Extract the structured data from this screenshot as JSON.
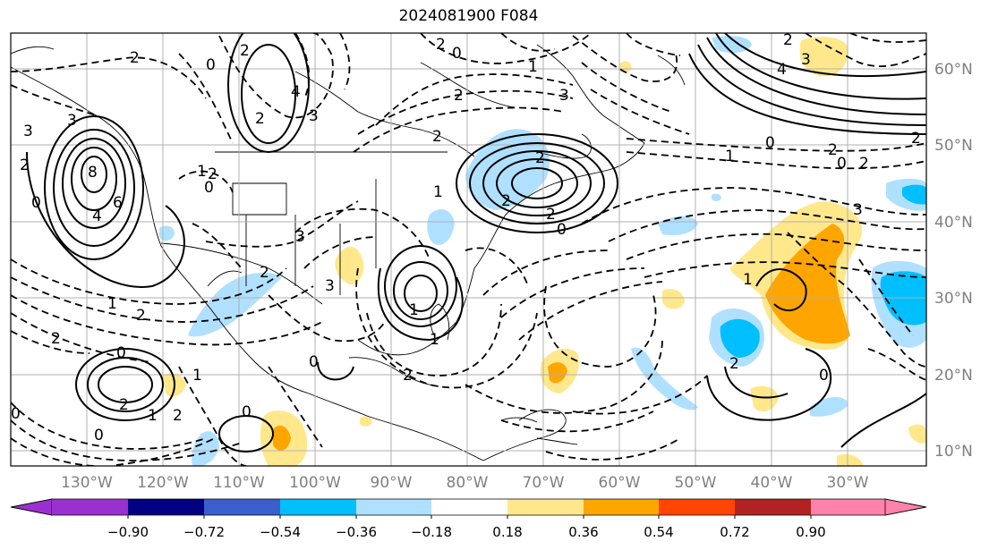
{
  "title": "2024081900 F084",
  "lon_labels": [
    "130°W",
    "120°W",
    "110°W",
    "100°W",
    "90°W",
    "80°W",
    "70°W",
    "60°W",
    "50°W",
    "40°W",
    "30°W"
  ],
  "lat_labels": [
    "60°N",
    "50°N",
    "40°N",
    "30°N",
    "20°N",
    "10°N"
  ],
  "colorbar": {
    "ticks": [
      "−0.90",
      "−0.72",
      "−0.54",
      "−0.36",
      "−0.18",
      "0.18",
      "0.36",
      "0.54",
      "0.72",
      "0.90"
    ],
    "colors": [
      "#9b30d0",
      "#000080",
      "#3a5fcd",
      "#00bfff",
      "#b0e0ff",
      "#ffffff",
      "#ffe88c",
      "#ffa500",
      "#ff4500",
      "#b22222",
      "#ff82ab"
    ]
  },
  "contour_labels": [
    "2",
    "2",
    "0",
    "3",
    "2",
    "1",
    "0",
    "4",
    "2",
    "3",
    "3",
    "8",
    "6",
    "4",
    "2",
    "1",
    "0",
    "2",
    "1",
    "2",
    "3",
    "0",
    "3",
    "2",
    "1",
    "2",
    "0",
    "2",
    "2",
    "2",
    "1",
    "2",
    "0",
    "0",
    "1",
    "2",
    "2",
    "3",
    "1",
    "0",
    "0",
    "1",
    "4",
    "2",
    "0",
    "1",
    "2",
    "3",
    "0",
    "2",
    "2",
    "2",
    "1",
    "0",
    "0",
    "3",
    "2",
    "2"
  ],
  "colors": {
    "grid": "#b0b0b0",
    "frame": "#000000",
    "labels_gray": "#808080"
  }
}
